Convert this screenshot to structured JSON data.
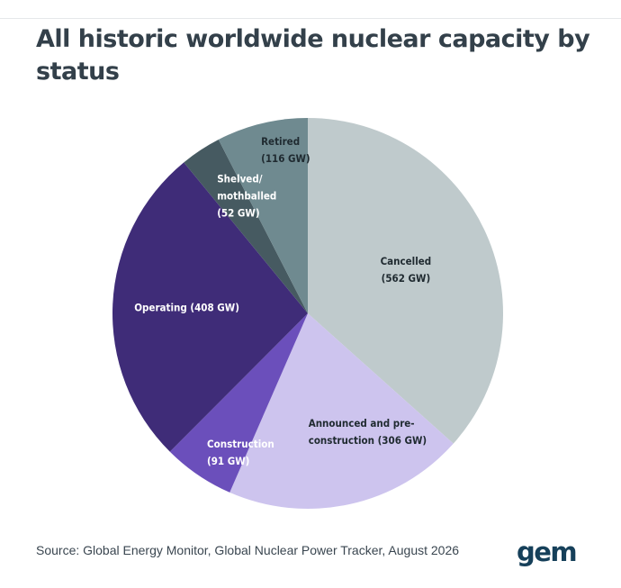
{
  "header": {
    "title": "All historic worldwide nuclear capacity by status"
  },
  "chart_data": {
    "type": "pie",
    "title": "All historic worldwide nuclear capacity by status",
    "slices": [
      {
        "label": "Cancelled",
        "value": 562,
        "unit": "GW",
        "color": "#bfcacc",
        "text_color": "#1f2a30",
        "lines": [
          "Cancelled",
          "(562 GW)"
        ]
      },
      {
        "label": "Announced and pre-construction",
        "value": 306,
        "unit": "GW",
        "color": "#cdc4ee",
        "text_color": "#1f2a30",
        "lines": [
          "Announced and pre-",
          "construction (306 GW)"
        ]
      },
      {
        "label": "Construction",
        "value": 91,
        "unit": "GW",
        "color": "#6b4fbb",
        "text_color": "#ffffff",
        "lines": [
          "Construction",
          "(91 GW)"
        ]
      },
      {
        "label": "Operating",
        "value": 408,
        "unit": "GW",
        "color": "#3f2c78",
        "text_color": "#ffffff",
        "lines": [
          "Operating (408 GW)"
        ]
      },
      {
        "label": "Shelved/mothballed",
        "value": 52,
        "unit": "GW",
        "color": "#465a61",
        "text_color": "#ffffff",
        "lines": [
          "Shelved/",
          "mothballed",
          "(52 GW)"
        ]
      },
      {
        "label": "Retired",
        "value": 116,
        "unit": "GW",
        "color": "#6f8a90",
        "text_color": "#1f2a30",
        "lines": [
          "Retired",
          "(116 GW)"
        ]
      }
    ],
    "start_angle": "12 o'clock",
    "direction": "clockwise",
    "legend": "none"
  },
  "footer": {
    "source": "Source: Global Energy Monitor, Global Nuclear Power Tracker, August 2026",
    "logo_text": "gem"
  }
}
